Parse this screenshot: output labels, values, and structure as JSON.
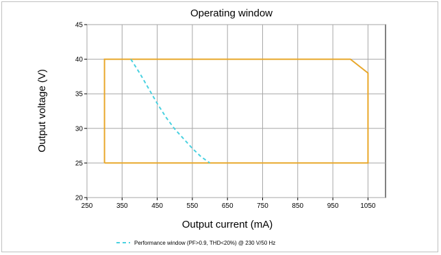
{
  "chart_data": {
    "type": "line",
    "title": "Operating window",
    "xlabel": "Output current (mA)",
    "ylabel": "Output voltage (V)",
    "xlim": [
      250,
      1100
    ],
    "ylim": [
      20,
      45
    ],
    "x_ticks": [
      250,
      350,
      450,
      550,
      650,
      750,
      850,
      950,
      1050
    ],
    "y_ticks": [
      20,
      25,
      30,
      35,
      40,
      45
    ],
    "grid": true,
    "legend_position": "bottom",
    "series": [
      {
        "role": "operating-window",
        "style": "solid",
        "color": "#e8a72a",
        "x": [
          300,
          300,
          1000,
          1050,
          1050,
          300
        ],
        "y": [
          25,
          40,
          40,
          38,
          25,
          25
        ]
      },
      {
        "role": "performance-window",
        "name": "Performance window (PF>0.9, THD<20%) @ 230 V/50 Hz",
        "style": "dashed",
        "color": "#48d1e0",
        "x": [
          375,
          400,
          425,
          450,
          475,
          500,
          525,
          550,
          575,
          600
        ],
        "y": [
          40,
          38,
          35.8,
          33.6,
          31.6,
          29.9,
          28.5,
          27.1,
          25.9,
          25
        ]
      }
    ]
  }
}
